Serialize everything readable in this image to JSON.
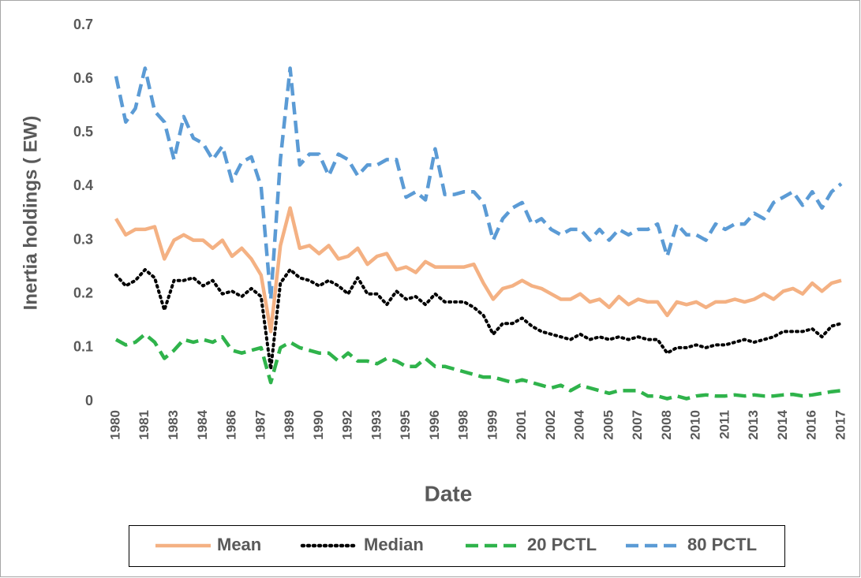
{
  "chart_data": {
    "type": "line",
    "x_label": "Date",
    "y_label": "Inertia holdings ( EW)",
    "categories": [
      "1980",
      null,
      null,
      "1981",
      null,
      null,
      "1983",
      null,
      null,
      "1984",
      null,
      null,
      "1986",
      null,
      null,
      "1987",
      null,
      null,
      "1989",
      null,
      null,
      "1990",
      null,
      null,
      "1992",
      null,
      null,
      "1993",
      null,
      null,
      "1995",
      null,
      null,
      "1996",
      null,
      null,
      "1998",
      null,
      null,
      "1999",
      null,
      null,
      "2001",
      null,
      null,
      "2002",
      null,
      null,
      "2004",
      null,
      null,
      "2005",
      null,
      null,
      "2007",
      null,
      null,
      "2008",
      null,
      null,
      "2010",
      null,
      null,
      "2011",
      null,
      null,
      "2013",
      null,
      null,
      "2014",
      null,
      null,
      "2016",
      null,
      null,
      "2017"
    ],
    "ylim": [
      0,
      0.7
    ],
    "yticks": [
      0,
      0.1,
      0.2,
      0.3,
      0.4,
      0.5,
      0.6,
      0.7
    ],
    "grid": false,
    "legend": "bottom",
    "series": [
      {
        "name": "Mean",
        "color": "#f4b183",
        "dash": "solid",
        "values": [
          0.34,
          0.31,
          0.32,
          0.32,
          0.325,
          0.265,
          0.3,
          0.31,
          0.3,
          0.3,
          0.285,
          0.3,
          0.27,
          0.285,
          0.265,
          0.235,
          0.13,
          0.29,
          0.36,
          0.285,
          0.29,
          0.275,
          0.29,
          0.265,
          0.27,
          0.285,
          0.255,
          0.27,
          0.275,
          0.245,
          0.25,
          0.24,
          0.26,
          0.25,
          0.25,
          0.25,
          0.25,
          0.255,
          0.22,
          0.19,
          0.21,
          0.215,
          0.225,
          0.215,
          0.21,
          0.2,
          0.19,
          0.19,
          0.2,
          0.185,
          0.19,
          0.175,
          0.195,
          0.18,
          0.19,
          0.185,
          0.185,
          0.16,
          0.185,
          0.18,
          0.185,
          0.175,
          0.185,
          0.185,
          0.19,
          0.185,
          0.19,
          0.2,
          0.19,
          0.205,
          0.21,
          0.2,
          0.22,
          0.205,
          0.22,
          0.225
        ]
      },
      {
        "name": "Median",
        "color": "#000000",
        "dash": "dot",
        "values": [
          0.235,
          0.215,
          0.225,
          0.245,
          0.23,
          0.17,
          0.225,
          0.225,
          0.23,
          0.215,
          0.225,
          0.2,
          0.205,
          0.195,
          0.21,
          0.195,
          0.06,
          0.22,
          0.245,
          0.23,
          0.225,
          0.215,
          0.225,
          0.215,
          0.2,
          0.23,
          0.2,
          0.2,
          0.18,
          0.205,
          0.19,
          0.195,
          0.18,
          0.2,
          0.185,
          0.185,
          0.185,
          0.175,
          0.16,
          0.125,
          0.145,
          0.145,
          0.155,
          0.14,
          0.13,
          0.125,
          0.12,
          0.115,
          0.125,
          0.115,
          0.12,
          0.115,
          0.12,
          0.115,
          0.12,
          0.115,
          0.115,
          0.09,
          0.1,
          0.1,
          0.105,
          0.1,
          0.105,
          0.105,
          0.11,
          0.115,
          0.11,
          0.115,
          0.12,
          0.13,
          0.13,
          0.13,
          0.135,
          0.12,
          0.14,
          0.145
        ]
      },
      {
        "name": "20 PCTL",
        "color": "#2fb34b",
        "dash": "dash",
        "values": [
          0.115,
          0.105,
          0.11,
          0.125,
          0.11,
          0.08,
          0.095,
          0.115,
          0.11,
          0.115,
          0.11,
          0.12,
          0.095,
          0.09,
          0.095,
          0.1,
          0.035,
          0.1,
          0.11,
          0.1,
          0.095,
          0.09,
          0.09,
          0.075,
          0.09,
          0.075,
          0.075,
          0.07,
          0.08,
          0.075,
          0.065,
          0.065,
          0.08,
          0.065,
          0.065,
          0.06,
          0.055,
          0.05,
          0.045,
          0.045,
          0.04,
          0.035,
          0.04,
          0.035,
          0.03,
          0.025,
          0.03,
          0.02,
          0.03,
          0.025,
          0.02,
          0.015,
          0.02,
          0.02,
          0.02,
          0.01,
          0.01,
          0.005,
          0.01,
          0.005,
          0.01,
          0.012,
          0.01,
          0.01,
          0.012,
          0.01,
          0.012,
          0.01,
          0.01,
          0.012,
          0.013,
          0.01,
          0.012,
          0.015,
          0.018,
          0.02
        ]
      },
      {
        "name": "80 PCTL",
        "color": "#5b9bd5",
        "dash": "dash",
        "values": [
          0.605,
          0.52,
          0.545,
          0.62,
          0.54,
          0.52,
          0.45,
          0.53,
          0.49,
          0.48,
          0.45,
          0.475,
          0.41,
          0.445,
          0.455,
          0.4,
          0.19,
          0.45,
          0.62,
          0.44,
          0.46,
          0.46,
          0.42,
          0.46,
          0.45,
          0.42,
          0.44,
          0.44,
          0.45,
          0.45,
          0.38,
          0.39,
          0.375,
          0.47,
          0.385,
          0.385,
          0.39,
          0.39,
          0.37,
          0.3,
          0.34,
          0.36,
          0.37,
          0.33,
          0.34,
          0.32,
          0.31,
          0.32,
          0.32,
          0.3,
          0.32,
          0.3,
          0.32,
          0.31,
          0.32,
          0.32,
          0.33,
          0.27,
          0.33,
          0.31,
          0.31,
          0.3,
          0.33,
          0.32,
          0.33,
          0.33,
          0.35,
          0.34,
          0.37,
          0.38,
          0.39,
          0.365,
          0.39,
          0.36,
          0.39,
          0.405
        ]
      }
    ]
  }
}
